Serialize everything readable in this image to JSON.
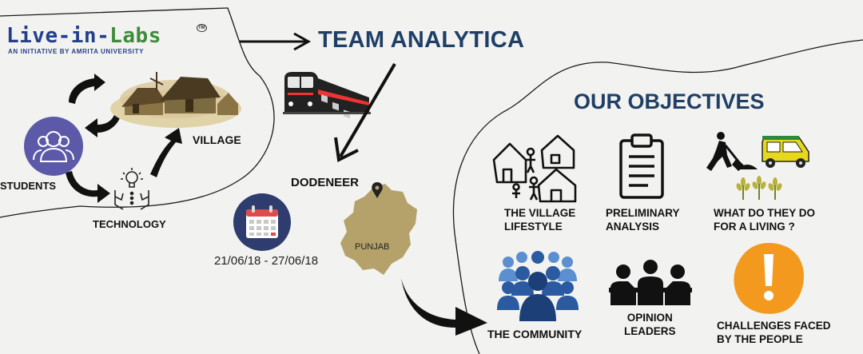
{
  "brand": {
    "logo_part1": "Live-in-",
    "logo_part2": "Labs",
    "trademark": "TM",
    "tagline": "AN INITIATIVE BY AMRITA UNIVERSITY"
  },
  "team_name": "TEAM ANALYTICA",
  "left": {
    "students": "STUDENTS",
    "village": "VILLAGE",
    "technology": "TECHNOLOGY"
  },
  "destination": {
    "village_name": "DODENEER",
    "state": "PUNJAB",
    "dates": "21/06/18 - 27/06/18"
  },
  "objectives": {
    "heading": "OUR OBJECTIVES",
    "items": [
      {
        "line1": "THE VILLAGE",
        "line2": "LIFESTYLE"
      },
      {
        "line1": "PRELIMINARY",
        "line2": "ANALYSIS"
      },
      {
        "line1": "WHAT DO THEY DO",
        "line2": "FOR A LIVING ?"
      },
      {
        "line1": "THE COMMUNITY",
        "line2": ""
      },
      {
        "line1": "OPINION",
        "line2": "LEADERS"
      },
      {
        "line1": "CHALLENGES FACED",
        "line2": "BY THE PEOPLE"
      }
    ]
  },
  "colors": {
    "title_blue": "#1f3f66",
    "logo_blue": "#233f8a",
    "logo_green": "#3c8c3a",
    "students_purple": "#5c5aa8",
    "calendar_navy": "#2f3c6e",
    "punjab_tan": "#b5a26a",
    "warning_orange": "#f39a1e"
  }
}
